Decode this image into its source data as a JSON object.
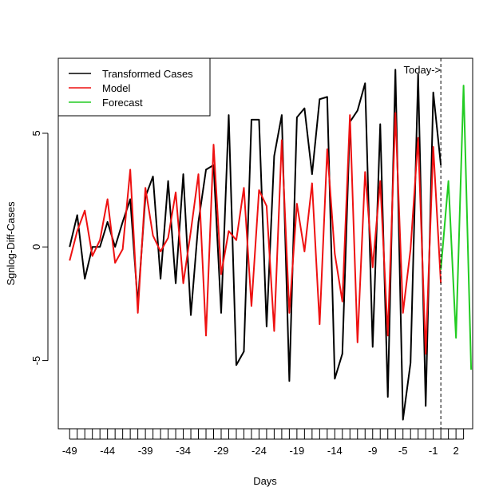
{
  "chart_data": {
    "type": "line",
    "xlabel": "Days",
    "ylabel": "Sgnlog-Diff-Cases",
    "xlim": [
      -50.5,
      4.2
    ],
    "ylim": [
      -8.0,
      8.3
    ],
    "x_tick_values": [
      -49,
      -48,
      -47,
      -46,
      -45,
      -44,
      -43,
      -42,
      -41,
      -40,
      -39,
      -38,
      -37,
      -36,
      -35,
      -34,
      -33,
      -32,
      -31,
      -30,
      -29,
      -28,
      -27,
      -26,
      -25,
      -24,
      -23,
      -22,
      -21,
      -20,
      -19,
      -18,
      -17,
      -16,
      -15,
      -14,
      -13,
      -12,
      -11,
      -10,
      -9,
      -8,
      -7,
      -6,
      -5,
      -4,
      -3,
      -2,
      -1,
      0,
      1,
      2,
      3
    ],
    "x_tick_labels": [
      {
        "x": -49,
        "label": "-49"
      },
      {
        "x": -44,
        "label": "-44"
      },
      {
        "x": -39,
        "label": "-39"
      },
      {
        "x": -34,
        "label": "-34"
      },
      {
        "x": -29,
        "label": "-29"
      },
      {
        "x": -24,
        "label": "-24"
      },
      {
        "x": -19,
        "label": "-19"
      },
      {
        "x": -14,
        "label": "-14"
      },
      {
        "x": -9,
        "label": "-9"
      },
      {
        "x": -5,
        "label": "-5"
      },
      {
        "x": -1,
        "label": "-1"
      },
      {
        "x": 2,
        "label": "2"
      }
    ],
    "y_ticks": [
      {
        "y": -5,
        "label": "-5"
      },
      {
        "y": 0,
        "label": "0"
      },
      {
        "y": 5,
        "label": "5"
      }
    ],
    "today_x": 0,
    "annotation": "Today->",
    "legend": {
      "position": "top-left",
      "entries": [
        {
          "label": "Transformed Cases",
          "color": "#000000"
        },
        {
          "label": "Model",
          "color": "#ee1111"
        },
        {
          "label": "Forecast",
          "color": "#22cc22"
        }
      ]
    },
    "series": [
      {
        "name": "Transformed Cases",
        "color": "#000000",
        "x": [
          -49,
          -48,
          -47,
          -46,
          -45,
          -44,
          -43,
          -42,
          -41,
          -40,
          -39,
          -38,
          -37,
          -36,
          -35,
          -34,
          -33,
          -32,
          -31,
          -30,
          -29,
          -28,
          -27,
          -26,
          -25,
          -24,
          -23,
          -22,
          -21,
          -20,
          -19,
          -18,
          -17,
          -16,
          -15,
          -14,
          -13,
          -12,
          -11,
          -10,
          -9,
          -8,
          -7,
          -6,
          -5,
          -4,
          -3,
          -2,
          -1,
          0
        ],
        "values": [
          0.0,
          1.4,
          -1.4,
          0.0,
          0.0,
          1.1,
          0.0,
          1.1,
          2.1,
          -2.5,
          2.2,
          3.1,
          -1.4,
          2.9,
          -1.6,
          3.2,
          -3.0,
          1.1,
          3.4,
          3.6,
          -2.9,
          5.8,
          -5.2,
          -4.6,
          5.6,
          5.6,
          -3.5,
          4.0,
          5.8,
          -5.9,
          5.7,
          6.1,
          3.2,
          6.5,
          6.6,
          -5.8,
          -4.7,
          5.5,
          6.0,
          7.2,
          -4.4,
          5.4,
          -6.6,
          7.8,
          -7.6,
          -5.1,
          7.6,
          -7.0,
          6.8,
          3.6
        ]
      },
      {
        "name": "Model",
        "color": "#ee1111",
        "x": [
          -49,
          -48,
          -47,
          -46,
          -45,
          -44,
          -43,
          -42,
          -41,
          -40,
          -39,
          -38,
          -37,
          -36,
          -35,
          -34,
          -33,
          -32,
          -31,
          -30,
          -29,
          -28,
          -27,
          -26,
          -25,
          -24,
          -23,
          -22,
          -21,
          -20,
          -19,
          -18,
          -17,
          -16,
          -15,
          -14,
          -13,
          -12,
          -11,
          -10,
          -9,
          -8,
          -7,
          -6,
          -5,
          -4,
          -3,
          -2,
          -1,
          0
        ],
        "values": [
          -0.6,
          0.7,
          1.6,
          -0.4,
          0.3,
          2.1,
          -0.7,
          -0.1,
          3.4,
          -2.9,
          2.6,
          0.5,
          -0.2,
          0.4,
          2.4,
          -1.6,
          0.7,
          3.2,
          -3.9,
          4.5,
          -1.2,
          0.7,
          0.3,
          2.6,
          -2.6,
          2.5,
          1.8,
          -3.7,
          4.7,
          -2.9,
          1.9,
          -0.2,
          2.8,
          -3.4,
          4.3,
          -0.3,
          -2.4,
          5.8,
          -4.2,
          3.3,
          -0.9,
          2.9,
          -3.9,
          5.9,
          -2.9,
          -0.1,
          4.8,
          -4.7,
          4.4,
          -1.6
        ]
      },
      {
        "name": "Forecast",
        "color": "#22cc22",
        "x": [
          0,
          1,
          2,
          3,
          4
        ],
        "values": [
          -1.0,
          2.9,
          -4.0,
          7.1,
          -5.4
        ]
      }
    ]
  }
}
